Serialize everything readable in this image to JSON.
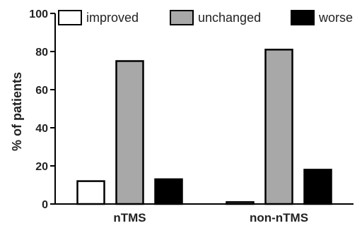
{
  "chart_data": {
    "type": "bar",
    "categories": [
      "nTMS",
      "non-nTMS"
    ],
    "series": [
      {
        "name": "improved",
        "values": [
          12,
          1
        ],
        "color": "#ffffff"
      },
      {
        "name": "unchanged",
        "values": [
          75,
          81
        ],
        "color": "#a8a8a8"
      },
      {
        "name": "worse",
        "values": [
          13,
          18
        ],
        "color": "#000000"
      }
    ],
    "ylabel": "% of patients",
    "xlabel": "",
    "ylim": [
      0,
      100
    ],
    "yticks": [
      0,
      20,
      40,
      60,
      80,
      100
    ],
    "grid": false,
    "legend_position": "top"
  }
}
